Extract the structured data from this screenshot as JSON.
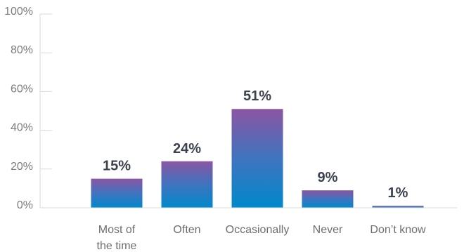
{
  "chart_data": {
    "type": "bar",
    "categories": [
      "Most of the time",
      "Often",
      "Occasionally",
      "Never",
      "Don’t know"
    ],
    "category_lines": [
      [
        "Most of",
        "the time"
      ],
      [
        "Often"
      ],
      [
        "Occasionally"
      ],
      [
        "Never"
      ],
      [
        "Don’t know"
      ]
    ],
    "values": [
      15,
      24,
      51,
      9,
      1
    ],
    "value_labels": [
      "15%",
      "24%",
      "51%",
      "9%",
      "1%"
    ],
    "ylim": [
      0,
      100
    ],
    "yticks": [
      0,
      20,
      40,
      60,
      80,
      100
    ],
    "ytick_labels": [
      "0%",
      "20%",
      "40%",
      "60%",
      "80%",
      "100%"
    ],
    "grid": false,
    "colors": {
      "bar_top": "#8a55a3",
      "bar_bottom": "#0088cc",
      "axis": "#d9d9d9",
      "tick_text": "#7c7c7c",
      "category_text": "#6e6e6e",
      "value_text": "#3a4250"
    }
  }
}
